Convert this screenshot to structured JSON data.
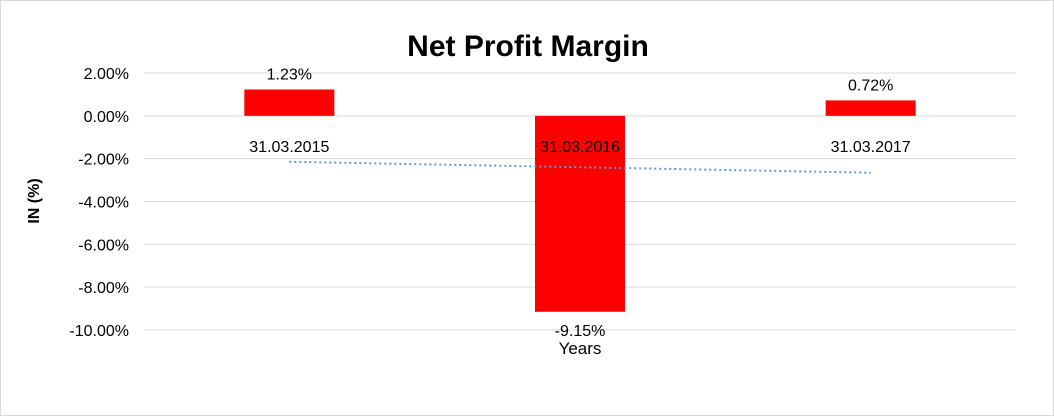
{
  "chart_data": {
    "type": "bar",
    "title": "Net Profit Margin",
    "xlabel": "Years",
    "ylabel": "IN (%)",
    "categories": [
      "31.03.2015",
      "31.03.2016",
      "31.03.2017"
    ],
    "values": [
      1.23,
      -9.15,
      0.72
    ],
    "data_labels": [
      "1.23%",
      "-9.15%",
      "0.72%"
    ],
    "ylim": [
      -10,
      2
    ],
    "yticks": [
      2,
      0,
      -2,
      -4,
      -6,
      -8,
      -10
    ],
    "ytick_labels": [
      "2.00%",
      "0.00%",
      "-2.00%",
      "-4.00%",
      "-6.00%",
      "-8.00%",
      "-10.00%"
    ],
    "grid": true,
    "trendline": "linear",
    "colors": {
      "bar": "#ff0000",
      "trendline": "#5b9bd5",
      "grid": "#d9d9d9"
    }
  }
}
